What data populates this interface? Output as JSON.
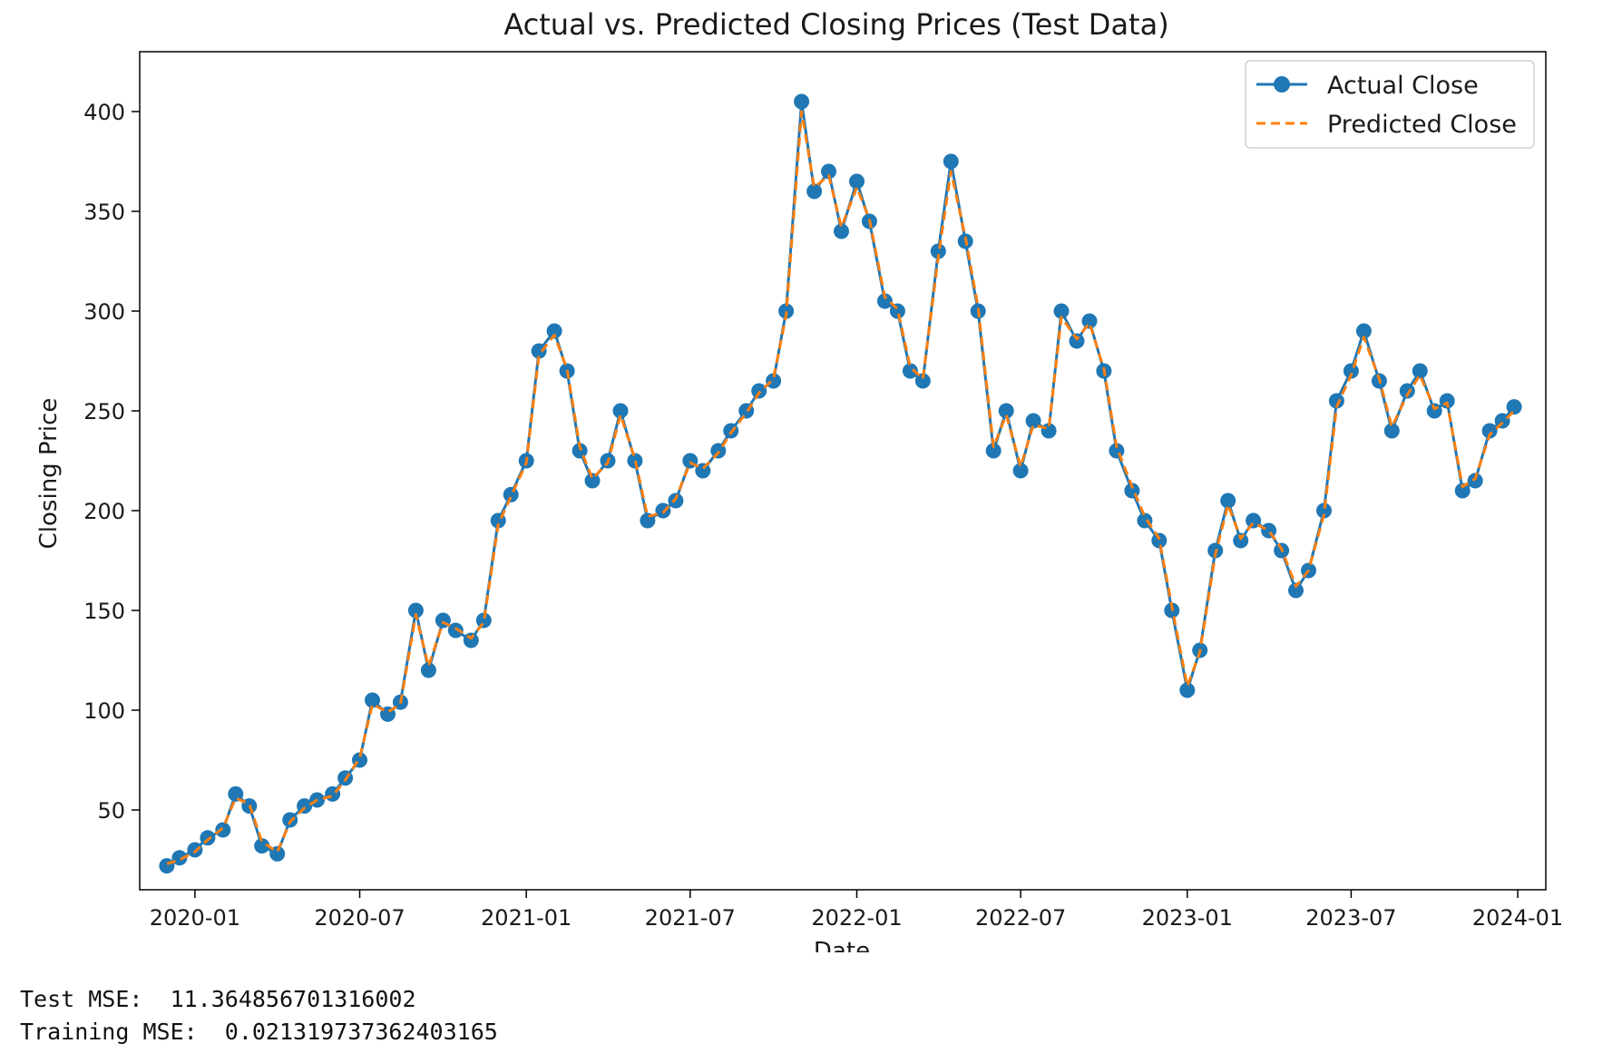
{
  "chart_data": {
    "type": "line",
    "title": "Actual vs. Predicted Closing Prices (Test Data)",
    "xlabel": "Date",
    "ylabel": "Closing Price",
    "xlim": [
      "2019-11-01",
      "2024-02-01"
    ],
    "ylim": [
      10,
      430
    ],
    "grid": false,
    "legend_position": "upper-right",
    "x_ticks": [
      "2020-01",
      "2020-07",
      "2021-01",
      "2021-07",
      "2022-01",
      "2022-07",
      "2023-01",
      "2023-07",
      "2024-01"
    ],
    "y_ticks": [
      50,
      100,
      150,
      200,
      250,
      300,
      350,
      400
    ],
    "x": [
      "2019-12-01",
      "2019-12-15",
      "2020-01-01",
      "2020-01-15",
      "2020-02-01",
      "2020-02-15",
      "2020-03-01",
      "2020-03-15",
      "2020-04-01",
      "2020-04-15",
      "2020-05-01",
      "2020-05-15",
      "2020-06-01",
      "2020-06-15",
      "2020-07-01",
      "2020-07-15",
      "2020-08-01",
      "2020-08-15",
      "2020-09-01",
      "2020-09-15",
      "2020-10-01",
      "2020-10-15",
      "2020-11-01",
      "2020-11-15",
      "2020-12-01",
      "2020-12-15",
      "2021-01-01",
      "2021-01-15",
      "2021-02-01",
      "2021-02-15",
      "2021-03-01",
      "2021-03-15",
      "2021-04-01",
      "2021-04-15",
      "2021-05-01",
      "2021-05-15",
      "2021-06-01",
      "2021-06-15",
      "2021-07-01",
      "2021-07-15",
      "2021-08-01",
      "2021-08-15",
      "2021-09-01",
      "2021-09-15",
      "2021-10-01",
      "2021-10-15",
      "2021-11-01",
      "2021-11-15",
      "2021-12-01",
      "2021-12-15",
      "2022-01-01",
      "2022-01-15",
      "2022-02-01",
      "2022-02-15",
      "2022-03-01",
      "2022-03-15",
      "2022-04-01",
      "2022-04-15",
      "2022-05-01",
      "2022-05-15",
      "2022-06-01",
      "2022-06-15",
      "2022-07-01",
      "2022-07-15",
      "2022-08-01",
      "2022-08-15",
      "2022-09-01",
      "2022-09-15",
      "2022-10-01",
      "2022-10-15",
      "2022-11-01",
      "2022-11-15",
      "2022-12-01",
      "2022-12-15",
      "2023-01-01",
      "2023-01-15",
      "2023-02-01",
      "2023-02-15",
      "2023-03-01",
      "2023-03-15",
      "2023-04-01",
      "2023-04-15",
      "2023-05-01",
      "2023-05-15",
      "2023-06-01",
      "2023-06-15",
      "2023-07-01",
      "2023-07-15",
      "2023-08-01",
      "2023-08-15",
      "2023-09-01",
      "2023-09-15",
      "2023-10-01",
      "2023-10-15",
      "2023-11-01",
      "2023-11-15",
      "2023-12-01",
      "2023-12-15",
      "2023-12-28"
    ],
    "series": [
      {
        "name": "Actual Close",
        "color": "#1f77b4",
        "style": "solid-with-circle-markers",
        "values": [
          22,
          26,
          30,
          36,
          40,
          58,
          52,
          32,
          28,
          45,
          52,
          55,
          58,
          66,
          75,
          105,
          98,
          104,
          150,
          120,
          145,
          140,
          135,
          145,
          195,
          208,
          225,
          280,
          290,
          270,
          230,
          215,
          225,
          250,
          225,
          195,
          200,
          205,
          225,
          220,
          230,
          240,
          250,
          260,
          265,
          300,
          405,
          360,
          370,
          340,
          365,
          345,
          305,
          300,
          270,
          265,
          330,
          375,
          335,
          300,
          230,
          250,
          220,
          245,
          240,
          300,
          285,
          295,
          270,
          230,
          210,
          195,
          185,
          150,
          110,
          130,
          180,
          205,
          185,
          195,
          190,
          180,
          160,
          170,
          200,
          255,
          270,
          290,
          265,
          240,
          260,
          270,
          250,
          255,
          210,
          215,
          240,
          245,
          252
        ]
      },
      {
        "name": "Predicted Close",
        "color": "#ff7f0e",
        "style": "dashed",
        "values": [
          23,
          25,
          29,
          35,
          41,
          56,
          53,
          34,
          29,
          44,
          51,
          55,
          57,
          65,
          76,
          103,
          99,
          103,
          148,
          122,
          144,
          141,
          136,
          144,
          193,
          207,
          224,
          278,
          288,
          271,
          232,
          216,
          224,
          248,
          226,
          197,
          199,
          206,
          224,
          221,
          229,
          239,
          249,
          259,
          266,
          298,
          400,
          362,
          368,
          342,
          362,
          346,
          307,
          301,
          272,
          266,
          327,
          370,
          337,
          302,
          232,
          248,
          222,
          243,
          241,
          297,
          286,
          294,
          271,
          232,
          212,
          197,
          186,
          152,
          112,
          129,
          178,
          203,
          186,
          194,
          190,
          181,
          162,
          170,
          198,
          252,
          268,
          287,
          266,
          242,
          258,
          268,
          251,
          254,
          212,
          216,
          238,
          244,
          250
        ]
      }
    ]
  },
  "output": {
    "test_mse_label": "Test MSE:",
    "test_mse_value": "11.364856701316002",
    "train_mse_label": "Training MSE:",
    "train_mse_value": "0.021319737362403165"
  }
}
